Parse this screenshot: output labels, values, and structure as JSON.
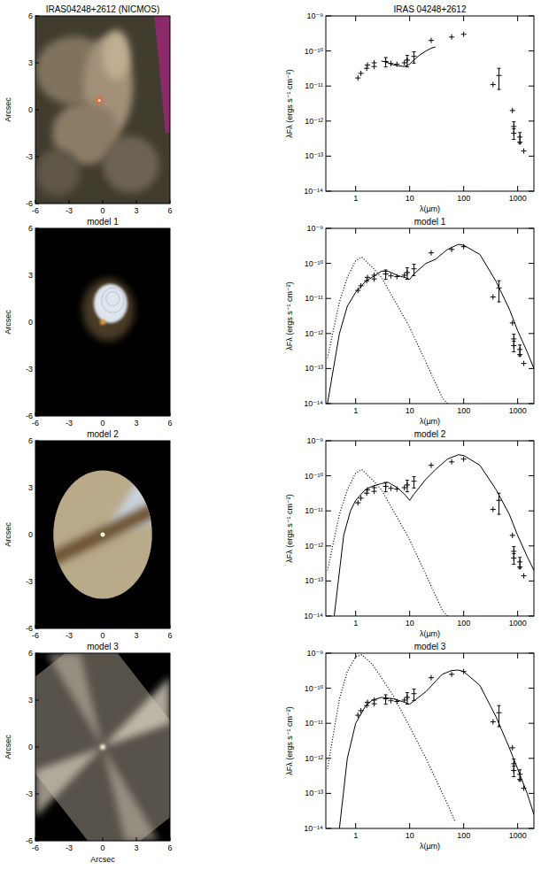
{
  "chart_data": [
    {
      "type": "image",
      "title": "IRAS04248+2612 (NICMOS)",
      "ylabel": "Arcsec",
      "xlim": [
        -6,
        6
      ],
      "ylim": [
        -6,
        6
      ],
      "xticks": [
        -6,
        -3,
        0,
        3,
        6
      ],
      "yticks": [
        -6,
        -3,
        0,
        3,
        6
      ]
    },
    {
      "type": "line",
      "title": "IRAS 04248+2612",
      "xlabel": "λ(µm)",
      "ylabel": "λFλ (ergs s⁻¹ cm⁻²)",
      "log": true,
      "xlim": [
        0.28,
        2000
      ],
      "ylim": [
        1e-14,
        1e-09
      ],
      "xticks": [
        1,
        10,
        100,
        1000
      ],
      "yticks": [
        {
          "value": 1e-14,
          "label": "10⁻¹⁴"
        },
        {
          "value": 1e-13,
          "label": "10⁻¹³"
        },
        {
          "value": 1e-12,
          "label": "10⁻¹²"
        },
        {
          "value": 1e-11,
          "label": "10⁻¹¹"
        },
        {
          "value": 1e-10,
          "label": "10⁻¹⁰"
        },
        {
          "value": 1e-09,
          "label": "10⁻⁹"
        }
      ],
      "series": [
        {
          "type": "scatter",
          "marker": "cross",
          "color": "#000000",
          "x": [
            1.1,
            1.25,
            1.6,
            1.65,
            2.2,
            2.2,
            3.6,
            4.5,
            5.8,
            8.0,
            9.0,
            12,
            25,
            60,
            100,
            350,
            450,
            800,
            850,
            850,
            1100,
            1100,
            1300
          ],
          "values": [
            1.7e-11,
            2.3e-11,
            3.2e-11,
            4e-11,
            4.6e-11,
            3.6e-11,
            5e-11,
            4.4e-11,
            4.2e-11,
            4.6e-11,
            5.5e-11,
            7e-11,
            2e-10,
            2.5e-10,
            3e-10,
            1.1e-11,
            2e-11,
            2e-12,
            7e-13,
            4.5e-13,
            3.5e-13,
            2.5e-13,
            1.4e-13
          ],
          "errors": [
            null,
            null,
            null,
            null,
            null,
            null,
            1.5e-11,
            null,
            null,
            null,
            2e-11,
            2.5e-11,
            null,
            null,
            null,
            null,
            1.2e-11,
            null,
            2.5e-13,
            1.5e-13,
            1.2e-13,
            null,
            null
          ]
        },
        {
          "type": "line",
          "line_style": "solid",
          "color": "#000000",
          "x": [
            3,
            4,
            5,
            6,
            8,
            10,
            12,
            15,
            20,
            25,
            30
          ],
          "values": [
            5.2e-11,
            4.6e-11,
            4e-11,
            3.8e-11,
            3.6e-11,
            4.2e-11,
            5.5e-11,
            7.5e-11,
            1e-10,
            1.2e-10,
            1.3e-10
          ]
        }
      ]
    },
    {
      "type": "image",
      "title": "model 1",
      "ylabel": "Arcsec",
      "xlim": [
        -6,
        6
      ],
      "ylim": [
        -6,
        6
      ],
      "xticks": [
        -6,
        -3,
        0,
        3,
        6
      ],
      "yticks": [
        -6,
        -3,
        0,
        3,
        6
      ]
    },
    {
      "type": "line",
      "title": "model 1",
      "xlabel": "λ(µm)",
      "ylabel": "λFλ (ergs s⁻¹ cm⁻²)",
      "log": true,
      "xlim": [
        0.28,
        2000
      ],
      "ylim": [
        1e-14,
        1e-09
      ],
      "xticks": [
        1,
        10,
        100,
        1000
      ],
      "yticks": [
        {
          "value": 1e-14,
          "label": "10⁻¹⁴"
        },
        {
          "value": 1e-13,
          "label": "10⁻¹³"
        },
        {
          "value": 1e-12,
          "label": "10⁻¹²"
        },
        {
          "value": 1e-11,
          "label": "10⁻¹¹"
        },
        {
          "value": 1e-10,
          "label": "10⁻¹⁰"
        },
        {
          "value": 1e-09,
          "label": "10⁻⁹"
        }
      ],
      "series": [
        {
          "type": "scatter",
          "marker": "cross",
          "color": "#000000",
          "x": [
            1.1,
            1.25,
            1.6,
            1.65,
            2.2,
            2.2,
            3.6,
            4.5,
            5.8,
            8.0,
            9.0,
            12,
            25,
            60,
            100,
            350,
            450,
            800,
            850,
            850,
            1100,
            1100,
            1300
          ],
          "values": [
            1.7e-11,
            2.3e-11,
            3.2e-11,
            4e-11,
            4.6e-11,
            3.6e-11,
            5e-11,
            4.4e-11,
            4.2e-11,
            4.6e-11,
            5.5e-11,
            7e-11,
            2e-10,
            2.5e-10,
            3e-10,
            1.1e-11,
            2e-11,
            2e-12,
            7e-13,
            4.5e-13,
            3.5e-13,
            2.5e-13,
            1.4e-13
          ],
          "errors": [
            null,
            null,
            null,
            null,
            null,
            null,
            1.5e-11,
            null,
            null,
            null,
            2e-11,
            2.5e-11,
            null,
            null,
            null,
            null,
            1.2e-11,
            null,
            2.5e-13,
            1.5e-13,
            1.2e-13,
            null,
            null
          ]
        },
        {
          "type": "line",
          "line_style": "solid",
          "color": "#000000",
          "x": [
            0.3,
            0.5,
            0.7,
            1,
            1.5,
            2,
            3,
            4,
            6,
            8,
            10,
            12,
            20,
            30,
            50,
            80,
            100,
            200,
            400,
            700,
            1000,
            1500,
            2000
          ],
          "values": [
            1e-14,
            1e-12,
            6e-12,
            1.5e-11,
            3e-11,
            4e-11,
            6e-11,
            6e-11,
            4.5e-11,
            4e-11,
            3.5e-11,
            5e-11,
            1e-10,
            1.3e-10,
            2.5e-10,
            3.5e-10,
            3.3e-10,
            1.8e-10,
            3e-11,
            5e-12,
            1.2e-12,
            3e-13,
            1e-13
          ]
        },
        {
          "type": "line",
          "line_style": "dotted",
          "color": "#000000",
          "x": [
            0.3,
            0.5,
            0.7,
            1,
            1.3,
            2,
            3,
            5,
            10,
            20,
            40,
            50
          ],
          "values": [
            2e-13,
            8e-12,
            4e-11,
            1.2e-10,
            1.5e-10,
            8e-11,
            4e-11,
            1e-11,
            1.5e-12,
            1.5e-13,
            1.5e-14,
            1e-14
          ]
        }
      ]
    },
    {
      "type": "image",
      "title": "model 2",
      "ylabel": "Arcsec",
      "xlim": [
        -6,
        6
      ],
      "ylim": [
        -6,
        6
      ],
      "xticks": [
        -6,
        -3,
        0,
        3,
        6
      ],
      "yticks": [
        -6,
        -3,
        0,
        3,
        6
      ]
    },
    {
      "type": "line",
      "title": "model 2",
      "xlabel": "λ(µm)",
      "ylabel": "λFλ (ergs s⁻¹ cm⁻²)",
      "log": true,
      "xlim": [
        0.28,
        2000
      ],
      "ylim": [
        1e-14,
        1e-09
      ],
      "xticks": [
        1,
        10,
        100,
        1000
      ],
      "yticks": [
        {
          "value": 1e-14,
          "label": "10⁻¹⁴"
        },
        {
          "value": 1e-13,
          "label": "10⁻¹³"
        },
        {
          "value": 1e-12,
          "label": "10⁻¹²"
        },
        {
          "value": 1e-11,
          "label": "10⁻¹¹"
        },
        {
          "value": 1e-10,
          "label": "10⁻¹⁰"
        },
        {
          "value": 1e-09,
          "label": "10⁻⁹"
        }
      ],
      "series": [
        {
          "type": "scatter",
          "marker": "cross",
          "color": "#000000",
          "x": [
            1.1,
            1.25,
            1.6,
            1.65,
            2.2,
            2.2,
            3.6,
            4.5,
            5.8,
            8.0,
            9.0,
            12,
            25,
            60,
            100,
            350,
            450,
            800,
            850,
            850,
            1100,
            1100,
            1300
          ],
          "values": [
            1.7e-11,
            2.3e-11,
            3.2e-11,
            4e-11,
            4.6e-11,
            3.6e-11,
            5e-11,
            4.4e-11,
            4.2e-11,
            4.6e-11,
            5.5e-11,
            7e-11,
            2e-10,
            2.5e-10,
            3e-10,
            1.1e-11,
            2e-11,
            2e-12,
            7e-13,
            4.5e-13,
            3.5e-13,
            2.5e-13,
            1.4e-13
          ],
          "errors": [
            null,
            null,
            null,
            null,
            null,
            null,
            1.5e-11,
            null,
            null,
            null,
            2e-11,
            2.5e-11,
            null,
            null,
            null,
            null,
            1.2e-11,
            null,
            2.5e-13,
            1.5e-13,
            1.2e-13,
            null,
            null
          ]
        },
        {
          "type": "line",
          "line_style": "solid",
          "color": "#000000",
          "x": [
            0.4,
            0.6,
            0.8,
            1,
            1.5,
            2,
            3,
            4,
            6,
            8,
            10,
            12,
            20,
            30,
            50,
            80,
            100,
            200,
            400,
            700,
            1000,
            1500,
            2000
          ],
          "values": [
            1e-14,
            2e-12,
            1e-11,
            2e-11,
            4e-11,
            5e-11,
            6e-11,
            6.5e-11,
            4.5e-11,
            3e-11,
            2e-11,
            3e-11,
            8e-11,
            1.5e-10,
            3e-10,
            4e-10,
            3.8e-10,
            2e-10,
            4e-11,
            8e-12,
            2e-12,
            5e-13,
            2e-13
          ]
        },
        {
          "type": "line",
          "line_style": "dotted",
          "color": "#000000",
          "x": [
            0.3,
            0.5,
            0.7,
            1,
            1.3,
            2,
            3,
            5,
            10,
            20,
            40,
            50
          ],
          "values": [
            2e-13,
            8e-12,
            4e-11,
            1.2e-10,
            1.5e-10,
            8e-11,
            4e-11,
            1e-11,
            1.5e-12,
            1.5e-13,
            1.5e-14,
            1e-14
          ]
        }
      ]
    },
    {
      "type": "image",
      "title": "model 3",
      "xlabel": "Arcsec",
      "ylabel": "Arcsec",
      "xlim": [
        -6,
        6
      ],
      "ylim": [
        -6,
        6
      ],
      "xticks": [
        -6,
        -3,
        0,
        3,
        6
      ],
      "yticks": [
        -6,
        -3,
        0,
        3,
        6
      ]
    },
    {
      "type": "line",
      "title": "model 3",
      "xlabel": "λ(µm)",
      "ylabel": "λFλ (ergs s⁻¹ cm⁻²)",
      "log": true,
      "xlim": [
        0.28,
        2000
      ],
      "ylim": [
        1e-14,
        1e-09
      ],
      "xticks": [
        1,
        10,
        100,
        1000
      ],
      "yticks": [
        {
          "value": 1e-14,
          "label": "10⁻¹⁴"
        },
        {
          "value": 1e-13,
          "label": "10⁻¹³"
        },
        {
          "value": 1e-12,
          "label": "10⁻¹²"
        },
        {
          "value": 1e-11,
          "label": "10⁻¹¹"
        },
        {
          "value": 1e-10,
          "label": "10⁻¹⁰"
        },
        {
          "value": 1e-09,
          "label": "10⁻⁹"
        }
      ],
      "series": [
        {
          "type": "scatter",
          "marker": "cross",
          "color": "#000000",
          "x": [
            1.1,
            1.25,
            1.6,
            1.65,
            2.2,
            2.2,
            3.6,
            4.5,
            5.8,
            8.0,
            9.0,
            12,
            25,
            60,
            100,
            350,
            450,
            800,
            850,
            850,
            1100,
            1100,
            1300
          ],
          "values": [
            1.7e-11,
            2.3e-11,
            3.2e-11,
            4e-11,
            4.6e-11,
            3.6e-11,
            5e-11,
            4.4e-11,
            4.2e-11,
            4.6e-11,
            5.5e-11,
            7e-11,
            2e-10,
            2.5e-10,
            3e-10,
            1.1e-11,
            2e-11,
            2e-12,
            7e-13,
            4.5e-13,
            3.5e-13,
            2.5e-13,
            1.4e-13
          ],
          "errors": [
            null,
            null,
            null,
            null,
            null,
            null,
            1.5e-11,
            null,
            null,
            null,
            2e-11,
            2.5e-11,
            null,
            null,
            null,
            null,
            1.2e-11,
            null,
            2.5e-13,
            1.5e-13,
            1.2e-13,
            null,
            null
          ]
        },
        {
          "type": "line",
          "line_style": "solid",
          "color": "#000000",
          "x": [
            0.5,
            0.7,
            1,
            1.5,
            2,
            3,
            5,
            8,
            10,
            20,
            40,
            60,
            80,
            100,
            200,
            400,
            700,
            1000,
            1500,
            2000
          ],
          "values": [
            1e-14,
            1e-12,
            1e-11,
            3e-11,
            4.5e-11,
            5.5e-11,
            5e-11,
            4e-11,
            3.5e-11,
            8e-11,
            2.5e-10,
            3.2e-10,
            3.3e-10,
            3e-10,
            1.2e-10,
            1.5e-11,
            2e-12,
            5e-13,
            1e-13,
            2.5e-14
          ]
        },
        {
          "type": "line",
          "line_style": "dotted",
          "color": "#000000",
          "x": [
            0.3,
            0.5,
            0.7,
            1,
            1.3,
            2,
            3,
            5,
            10,
            20,
            50,
            70
          ],
          "values": [
            5e-13,
            5e-11,
            3e-10,
            8e-10,
            9e-10,
            5e-10,
            2e-10,
            6e-11,
            8e-12,
            1e-12,
            5e-14,
            1.5e-14
          ]
        }
      ]
    }
  ]
}
